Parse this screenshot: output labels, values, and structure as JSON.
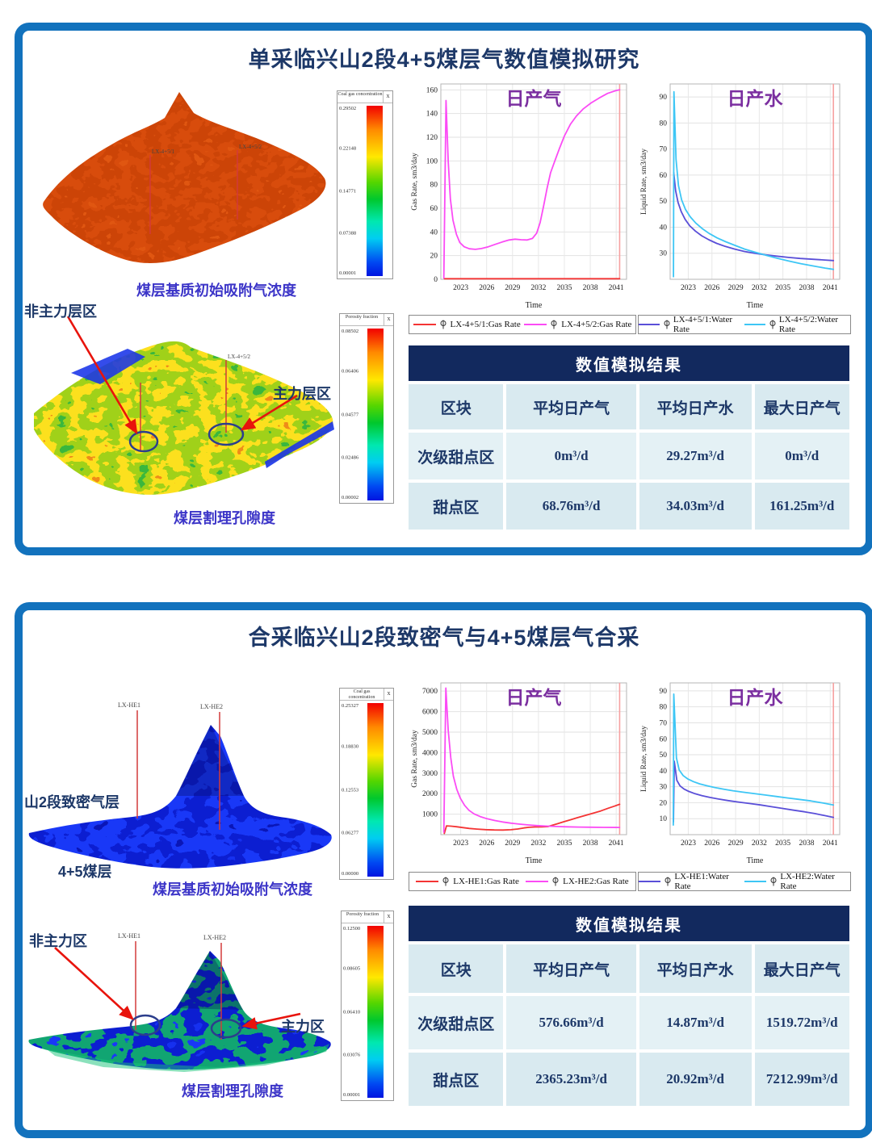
{
  "colors": {
    "panel_border": "#1272bd",
    "title_navy": "#1d3868",
    "caption_blue": "#3c35c8",
    "chart_title_purple": "#7b2fa0",
    "table_header_bg": "#12295e",
    "table_row_bg_a": "#d9eaf0",
    "table_row_bg_b": "#e4f1f5",
    "series_red": "#f43434",
    "series_magenta": "#fb4bf5",
    "series_blue": "#5a4fd8",
    "series_cyan": "#3dc6f5",
    "end_marker": "#f6a0a0",
    "arrow_red": "#e8140c"
  },
  "panel1": {
    "title": "单采临兴山2段4+5煤层气数值模拟研究",
    "map1": {
      "caption": "煤层基质初始吸附气浓度",
      "wells": [
        "LX-4+5/1",
        "LX-4+5/2"
      ],
      "colorbar": {
        "title": "Coal gas concentration",
        "close": "x",
        "ticks": [
          "0.29502",
          "0.22148",
          "0.14771",
          "0.07388",
          "0.00001"
        ]
      }
    },
    "map2": {
      "caption": "煤层割理孔隙度",
      "label_non_main": "非主力层区",
      "label_main": "主力层区",
      "well": "LX-4+5/2",
      "colorbar": {
        "title": "Porosity fraction",
        "close": "x",
        "ticks": [
          "0.08502",
          "0.06406",
          "0.04577",
          "0.02486",
          "0.00002"
        ]
      }
    },
    "table": {
      "title": "数值模拟结果",
      "columns": [
        "区块",
        "平均日产气",
        "平均日产水",
        "最大日产气"
      ],
      "rows": [
        [
          "次级甜点区",
          "0m³/d",
          "29.27m³/d",
          "0m³/d"
        ],
        [
          "甜点区",
          "68.76m³/d",
          "34.03m³/d",
          "161.25m³/d"
        ]
      ]
    }
  },
  "panel2": {
    "title": "合采临兴山2段致密气与4+5煤层气合采",
    "map1": {
      "caption": "煤层基质初始吸附气浓度",
      "label_layer_top": "山2段致密气层",
      "label_layer_bottom": "4+5煤层",
      "wells": [
        "LX-HE1",
        "LX-HE2"
      ],
      "colorbar": {
        "title": "Coal gas concentration",
        "close": "x",
        "ticks": [
          "0.25327",
          "0.18830",
          "0.12553",
          "0.06277",
          "0.00000"
        ]
      }
    },
    "map2": {
      "caption": "煤层割理孔隙度",
      "label_non_main": "非主力区",
      "label_main": "主力区",
      "wells": [
        "LX-HE1",
        "LX-HE2"
      ],
      "colorbar": {
        "title": "Porosity fraction",
        "close": "x",
        "ticks": [
          "0.12500",
          "0.08605",
          "0.06410",
          "0.03076",
          "0.00001"
        ]
      }
    },
    "table": {
      "title": "数值模拟结果",
      "columns": [
        "区块",
        "平均日产气",
        "平均日产水",
        "最大日产气"
      ],
      "rows": [
        [
          "次级甜点区",
          "576.66m³/d",
          "14.87m³/d",
          "1519.72m³/d"
        ],
        [
          "甜点区",
          "2365.23m³/d",
          "20.92m³/d",
          "7212.99m³/d"
        ]
      ]
    }
  },
  "chart_data": [
    {
      "id": "gas1",
      "type": "line",
      "title": "日产气",
      "title_color": "#7b2fa0",
      "xlabel": "Time",
      "ylabel": "Gas Rate, sm3/day",
      "xlim": [
        2020.7,
        2042.2
      ],
      "ylim": [
        0,
        165
      ],
      "xticks": [
        2023,
        2026,
        2029,
        2032,
        2035,
        2038,
        2041
      ],
      "yticks": [
        0,
        20,
        40,
        60,
        80,
        100,
        120,
        140,
        160
      ],
      "grid": true,
      "legend_position": "bottom",
      "end_marker_x": 2041.4,
      "series": [
        {
          "name": "LX-4+5/1:Gas Rate",
          "color": "#f43434",
          "points": [
            [
              2021.1,
              0.5
            ],
            [
              2041.4,
              0.5
            ]
          ]
        },
        {
          "name": "LX-4+5/2:Gas Rate",
          "color": "#fb4bf5",
          "points": [
            [
              2021.05,
              1
            ],
            [
              2021.3,
              151
            ],
            [
              2021.55,
              100
            ],
            [
              2021.8,
              68
            ],
            [
              2022.1,
              50
            ],
            [
              2022.5,
              38
            ],
            [
              2022.9,
              31
            ],
            [
              2023.4,
              27.5
            ],
            [
              2024,
              25.8
            ],
            [
              2024.7,
              25.3
            ],
            [
              2025.4,
              26
            ],
            [
              2026.2,
              27.5
            ],
            [
              2027,
              29.5
            ],
            [
              2027.8,
              31.5
            ],
            [
              2028.6,
              33.2
            ],
            [
              2029.3,
              33.9
            ],
            [
              2030,
              33.4
            ],
            [
              2030.7,
              33.2
            ],
            [
              2031.3,
              34.5
            ],
            [
              2031.8,
              39
            ],
            [
              2032.2,
              48
            ],
            [
              2032.6,
              62
            ],
            [
              2033,
              77
            ],
            [
              2033.4,
              90
            ],
            [
              2033.9,
              100
            ],
            [
              2034.4,
              110
            ],
            [
              2035,
              121
            ],
            [
              2035.7,
              131
            ],
            [
              2036.4,
              138
            ],
            [
              2037.2,
              144
            ],
            [
              2038.1,
              149
            ],
            [
              2039,
              153
            ],
            [
              2040,
              157
            ],
            [
              2041,
              159.5
            ],
            [
              2041.4,
              160
            ]
          ]
        }
      ]
    },
    {
      "id": "water1",
      "type": "line",
      "title": "日产水",
      "title_color": "#7b2fa0",
      "xlabel": "Time",
      "ylabel": "Liquid Rate, sm3/day",
      "xlim": [
        2020.7,
        2042.2
      ],
      "ylim": [
        20,
        95
      ],
      "xticks": [
        2023,
        2026,
        2029,
        2032,
        2035,
        2038,
        2041
      ],
      "yticks": [
        30,
        40,
        50,
        60,
        70,
        80,
        90
      ],
      "grid": true,
      "legend_position": "bottom",
      "end_marker_x": 2041.4,
      "series": [
        {
          "name": "LX-4+5/1:Water Rate",
          "color": "#5a4fd8",
          "points": [
            [
              2021.15,
              61
            ],
            [
              2021.4,
              54
            ],
            [
              2021.7,
              49.5
            ],
            [
              2022.1,
              46
            ],
            [
              2022.6,
              43
            ],
            [
              2023.2,
              40.5
            ],
            [
              2023.9,
              38.5
            ],
            [
              2024.7,
              36.7
            ],
            [
              2025.6,
              35.2
            ],
            [
              2026.6,
              33.8
            ],
            [
              2027.7,
              32.6
            ],
            [
              2028.9,
              31.6
            ],
            [
              2030.1,
              30.7
            ],
            [
              2031.4,
              30
            ],
            [
              2032.8,
              29.4
            ],
            [
              2034.2,
              28.9
            ],
            [
              2035.7,
              28.4
            ],
            [
              2037.2,
              28
            ],
            [
              2038.8,
              27.7
            ],
            [
              2040.3,
              27.4
            ],
            [
              2041.4,
              27.2
            ]
          ]
        },
        {
          "name": "LX-4+5/2:Water Rate",
          "color": "#3dc6f5",
          "points": [
            [
              2021.12,
              21
            ],
            [
              2021.18,
              92
            ],
            [
              2021.45,
              66
            ],
            [
              2021.75,
              56
            ],
            [
              2022.15,
              50.5
            ],
            [
              2022.65,
              46.8
            ],
            [
              2023.25,
              44
            ],
            [
              2023.95,
              41.6
            ],
            [
              2024.75,
              39.5
            ],
            [
              2025.65,
              37.6
            ],
            [
              2026.65,
              35.9
            ],
            [
              2027.75,
              34.4
            ],
            [
              2028.95,
              33
            ],
            [
              2030.15,
              31.6
            ],
            [
              2031.45,
              30.4
            ],
            [
              2032.85,
              29.2
            ],
            [
              2034.25,
              28.1
            ],
            [
              2035.75,
              27
            ],
            [
              2037.25,
              26
            ],
            [
              2038.85,
              25.1
            ],
            [
              2040.35,
              24.3
            ],
            [
              2041.4,
              23.8
            ]
          ]
        }
      ]
    },
    {
      "id": "gas2",
      "type": "line",
      "title": "日产气",
      "title_color": "#7b2fa0",
      "xlabel": "Time",
      "ylabel": "Gas Rate, sm3/day",
      "xlim": [
        2020.7,
        2042.2
      ],
      "ylim": [
        0,
        7400
      ],
      "xticks": [
        2023,
        2026,
        2029,
        2032,
        2035,
        2038,
        2041
      ],
      "yticks": [
        1000,
        2000,
        3000,
        4000,
        5000,
        6000,
        7000
      ],
      "grid": true,
      "legend_position": "bottom",
      "end_marker_x": 2041.4,
      "series": [
        {
          "name": "LX-HE1:Gas Rate",
          "color": "#f43434",
          "points": [
            [
              2021.1,
              60
            ],
            [
              2021.35,
              430
            ],
            [
              2021.9,
              415
            ],
            [
              2022.5,
              385
            ],
            [
              2023.2,
              345
            ],
            [
              2024,
              305
            ],
            [
              2024.9,
              272
            ],
            [
              2025.9,
              245
            ],
            [
              2026.9,
              228
            ],
            [
              2027.9,
              226
            ],
            [
              2028.8,
              240
            ],
            [
              2029.6,
              275
            ],
            [
              2030.3,
              325
            ],
            [
              2030.9,
              358
            ],
            [
              2031.6,
              372
            ],
            [
              2032.4,
              376
            ],
            [
              2033.1,
              395
            ],
            [
              2033.6,
              455
            ],
            [
              2034.2,
              530
            ],
            [
              2034.9,
              625
            ],
            [
              2035.7,
              725
            ],
            [
              2036.5,
              825
            ],
            [
              2037.4,
              935
            ],
            [
              2038.3,
              1045
            ],
            [
              2039.2,
              1155
            ],
            [
              2040.1,
              1290
            ],
            [
              2040.8,
              1390
            ],
            [
              2041.4,
              1480
            ]
          ]
        },
        {
          "name": "LX-HE2:Gas Rate",
          "color": "#fb4bf5",
          "points": [
            [
              2021.05,
              120
            ],
            [
              2021.28,
              7150
            ],
            [
              2021.55,
              5100
            ],
            [
              2021.85,
              3750
            ],
            [
              2022.15,
              2850
            ],
            [
              2022.55,
              2200
            ],
            [
              2022.95,
              1780
            ],
            [
              2023.45,
              1430
            ],
            [
              2023.95,
              1190
            ],
            [
              2024.55,
              1010
            ],
            [
              2025.25,
              880
            ],
            [
              2026.05,
              775
            ],
            [
              2026.95,
              688
            ],
            [
              2027.85,
              618
            ],
            [
              2028.85,
              558
            ],
            [
              2029.85,
              512
            ],
            [
              2030.85,
              472
            ],
            [
              2031.85,
              442
            ],
            [
              2032.85,
              418
            ],
            [
              2034.05,
              396
            ],
            [
              2035.35,
              381
            ],
            [
              2036.65,
              370
            ],
            [
              2038.05,
              362
            ],
            [
              2039.55,
              356
            ],
            [
              2041.4,
              352
            ]
          ]
        }
      ]
    },
    {
      "id": "water2",
      "type": "line",
      "title": "日产水",
      "title_color": "#7b2fa0",
      "xlabel": "Time",
      "ylabel": "Liquid Rate, sm3/day",
      "xlim": [
        2020.7,
        2042.2
      ],
      "ylim": [
        0,
        95
      ],
      "xticks": [
        2023,
        2026,
        2029,
        2032,
        2035,
        2038,
        2041
      ],
      "yticks": [
        10,
        20,
        30,
        40,
        50,
        60,
        70,
        80,
        90
      ],
      "grid": true,
      "legend_position": "bottom",
      "end_marker_x": 2041.4,
      "series": [
        {
          "name": "LX-HE1:Water Rate",
          "color": "#5a4fd8",
          "points": [
            [
              2021.12,
              8
            ],
            [
              2021.22,
              46
            ],
            [
              2021.55,
              34
            ],
            [
              2021.95,
              30.5
            ],
            [
              2022.45,
              28.6
            ],
            [
              2023.05,
              27.1
            ],
            [
              2023.85,
              25.6
            ],
            [
              2024.75,
              24.4
            ],
            [
              2025.75,
              23.3
            ],
            [
              2026.85,
              22.3
            ],
            [
              2028.05,
              21.3
            ],
            [
              2029.35,
              20.4
            ],
            [
              2030.75,
              19.5
            ],
            [
              2032.15,
              18.6
            ],
            [
              2033.55,
              17.5
            ],
            [
              2034.95,
              16.4
            ],
            [
              2036.35,
              15.3
            ],
            [
              2037.75,
              14.3
            ],
            [
              2039.05,
              13.2
            ],
            [
              2040.25,
              12
            ],
            [
              2041.4,
              10.8
            ]
          ]
        },
        {
          "name": "LX-HE2:Water Rate",
          "color": "#3dc6f5",
          "points": [
            [
              2021.1,
              6
            ],
            [
              2021.16,
              88
            ],
            [
              2021.5,
              48
            ],
            [
              2021.85,
              40.5
            ],
            [
              2022.35,
              37
            ],
            [
              2022.95,
              34.8
            ],
            [
              2023.65,
              33.2
            ],
            [
              2024.45,
              31.8
            ],
            [
              2025.35,
              30.6
            ],
            [
              2026.35,
              29.5
            ],
            [
              2027.45,
              28.5
            ],
            [
              2028.65,
              27.5
            ],
            [
              2029.95,
              26.6
            ],
            [
              2031.35,
              25.7
            ],
            [
              2032.75,
              24.8
            ],
            [
              2034.15,
              23.9
            ],
            [
              2035.55,
              23
            ],
            [
              2037.05,
              22.1
            ],
            [
              2038.55,
              21.1
            ],
            [
              2040.05,
              19.8
            ],
            [
              2041.4,
              18.6
            ]
          ]
        }
      ]
    }
  ]
}
